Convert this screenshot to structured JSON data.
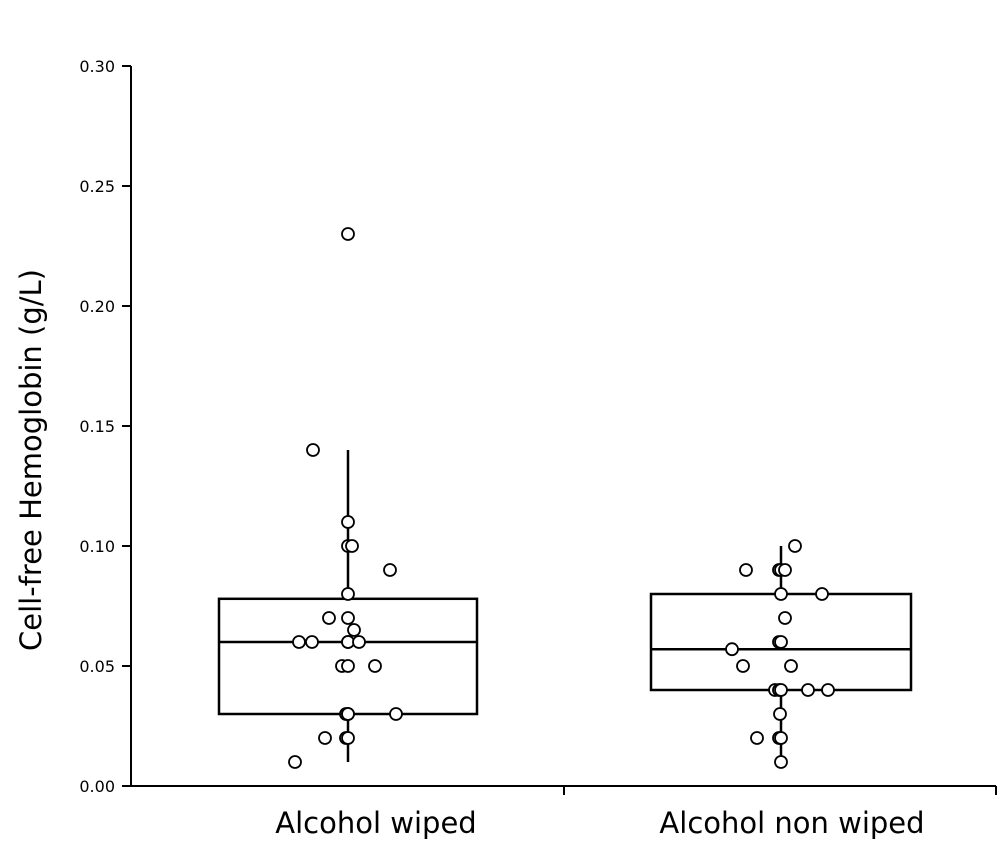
{
  "chart_data": {
    "type": "box",
    "title": "",
    "xlabel": "",
    "ylabel": "Cell-free Hemoglobin (g/L)",
    "ylim": [
      0,
      0.3
    ],
    "yticks": [
      "0.00",
      "0.05",
      "0.10",
      "0.15",
      "0.20",
      "0.25",
      "0.30"
    ],
    "ytick_values": [
      0,
      0.05,
      0.1,
      0.15,
      0.2,
      0.25,
      0.3
    ],
    "grid": false,
    "categories": [
      "Alcohol wiped",
      "Alcohol non wiped"
    ],
    "boxes": [
      {
        "category": "Alcohol wiped",
        "q1": 0.03,
        "median": 0.06,
        "q3": 0.078,
        "whisker_low": 0.01,
        "whisker_high": 0.14
      },
      {
        "category": "Alcohol non wiped",
        "q1": 0.04,
        "median": 0.057,
        "q3": 0.08,
        "whisker_low": 0.01,
        "whisker_high": 0.1
      }
    ],
    "points": [
      [
        0.23,
        0.14,
        0.11,
        0.1,
        0.1,
        0.09,
        0.08,
        0.07,
        0.07,
        0.065,
        0.06,
        0.06,
        0.06,
        0.06,
        0.06,
        0.05,
        0.05,
        0.05,
        0.03,
        0.03,
        0.03,
        0.03,
        0.02,
        0.02,
        0.02,
        0.01
      ],
      [
        0.1,
        0.09,
        0.09,
        0.09,
        0.09,
        0.08,
        0.08,
        0.07,
        0.06,
        0.06,
        0.057,
        0.05,
        0.05,
        0.04,
        0.04,
        0.04,
        0.04,
        0.04,
        0.03,
        0.02,
        0.02,
        0.02,
        0.01
      ]
    ]
  }
}
